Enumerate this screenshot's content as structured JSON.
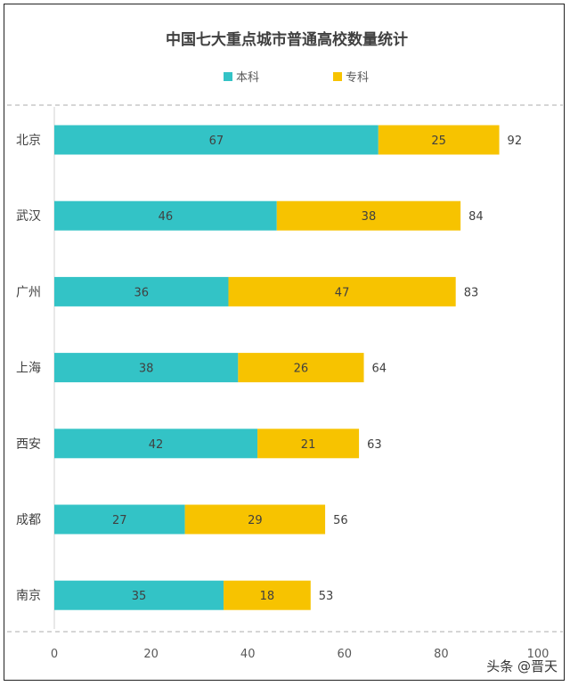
{
  "chart_data": {
    "type": "bar",
    "orientation": "horizontal",
    "stacked": true,
    "title": "中国七大重点城市普通高校数量统计",
    "categories": [
      "北京",
      "武汉",
      "广州",
      "上海",
      "西安",
      "成都",
      "南京"
    ],
    "series": [
      {
        "name": "本科",
        "color": "#33C3C6",
        "values": [
          67,
          46,
          36,
          38,
          42,
          27,
          35
        ]
      },
      {
        "name": "专科",
        "color": "#F7C300",
        "values": [
          25,
          38,
          47,
          26,
          21,
          29,
          18
        ]
      }
    ],
    "totals": [
      92,
      84,
      83,
      64,
      63,
      56,
      53
    ],
    "xlim": [
      0,
      100
    ],
    "xticks": [
      0,
      20,
      40,
      60,
      80,
      100
    ],
    "legend_position": "top",
    "grid": false
  },
  "watermark": "头条 @晋天"
}
